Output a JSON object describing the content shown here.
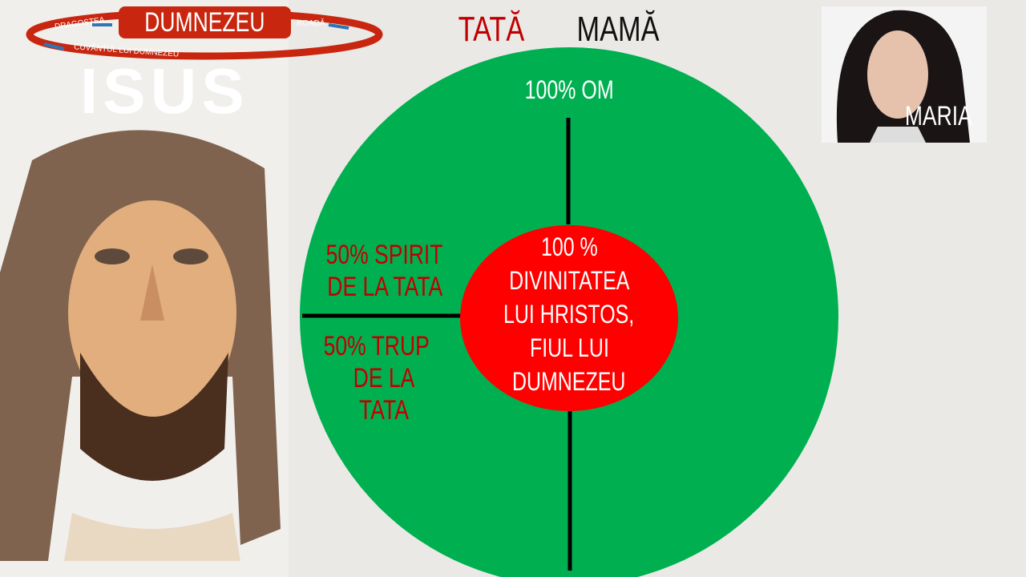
{
  "logo": {
    "center": "DUMNEZEU",
    "left": "DRAGOSTEA",
    "right": "ROADĂ",
    "bottom": "CUVÂNTUL LUI DUMNEZEU",
    "watermark": "ISUS"
  },
  "header": {
    "father": "TATĂ",
    "mother": "MAMĂ"
  },
  "photo": {
    "label": "MARIA"
  },
  "diagram": {
    "outer_label": "100% OM",
    "center_lines": [
      "100 %",
      "DIVINITATEA",
      "LUI HRISTOS,",
      "FIUL LUI",
      "DUMNEZEU"
    ],
    "left_upper": [
      "50% SPIRIT",
      "DE LA TATA"
    ],
    "left_lower": [
      "50% TRUP",
      "DE LA TATA"
    ]
  },
  "colors": {
    "outer": "#00b050",
    "inner": "#ff0000",
    "accent": "#c00000",
    "logo": "#c8260f"
  }
}
